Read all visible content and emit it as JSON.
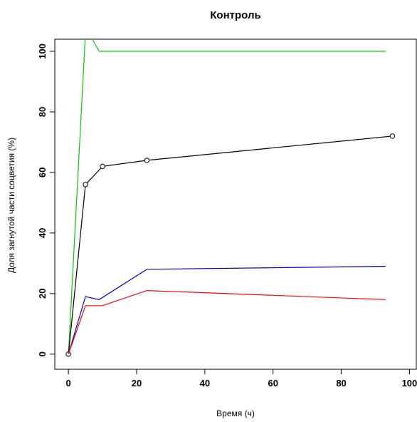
{
  "chart_data": {
    "type": "line",
    "title": "Контроль",
    "xlabel": "Время (ч)",
    "ylabel": "Доля загнутой части соцветия (%)",
    "xlim": [
      -4,
      102
    ],
    "ylim": [
      -5,
      104
    ],
    "xticks": [
      0,
      20,
      40,
      60,
      80,
      100
    ],
    "yticks": [
      0,
      20,
      40,
      60,
      80,
      100
    ],
    "grid": false,
    "series": [
      {
        "color": "#00cc00",
        "markers": false,
        "x": [
          0,
          5,
          7,
          9,
          93
        ],
        "y": [
          0,
          106,
          104,
          100,
          100
        ]
      },
      {
        "color": "#000000",
        "markers": true,
        "x": [
          0,
          5,
          10,
          23,
          95
        ],
        "y": [
          0,
          56,
          62,
          64,
          72
        ]
      },
      {
        "color": "#0000cc",
        "markers": false,
        "x": [
          0,
          5,
          9,
          23,
          93
        ],
        "y": [
          0,
          19,
          18,
          28,
          29
        ]
      },
      {
        "color": "#ff0000",
        "markers": false,
        "x": [
          0,
          5,
          10,
          23,
          93
        ],
        "y": [
          0,
          16,
          16,
          21,
          18
        ]
      }
    ]
  }
}
